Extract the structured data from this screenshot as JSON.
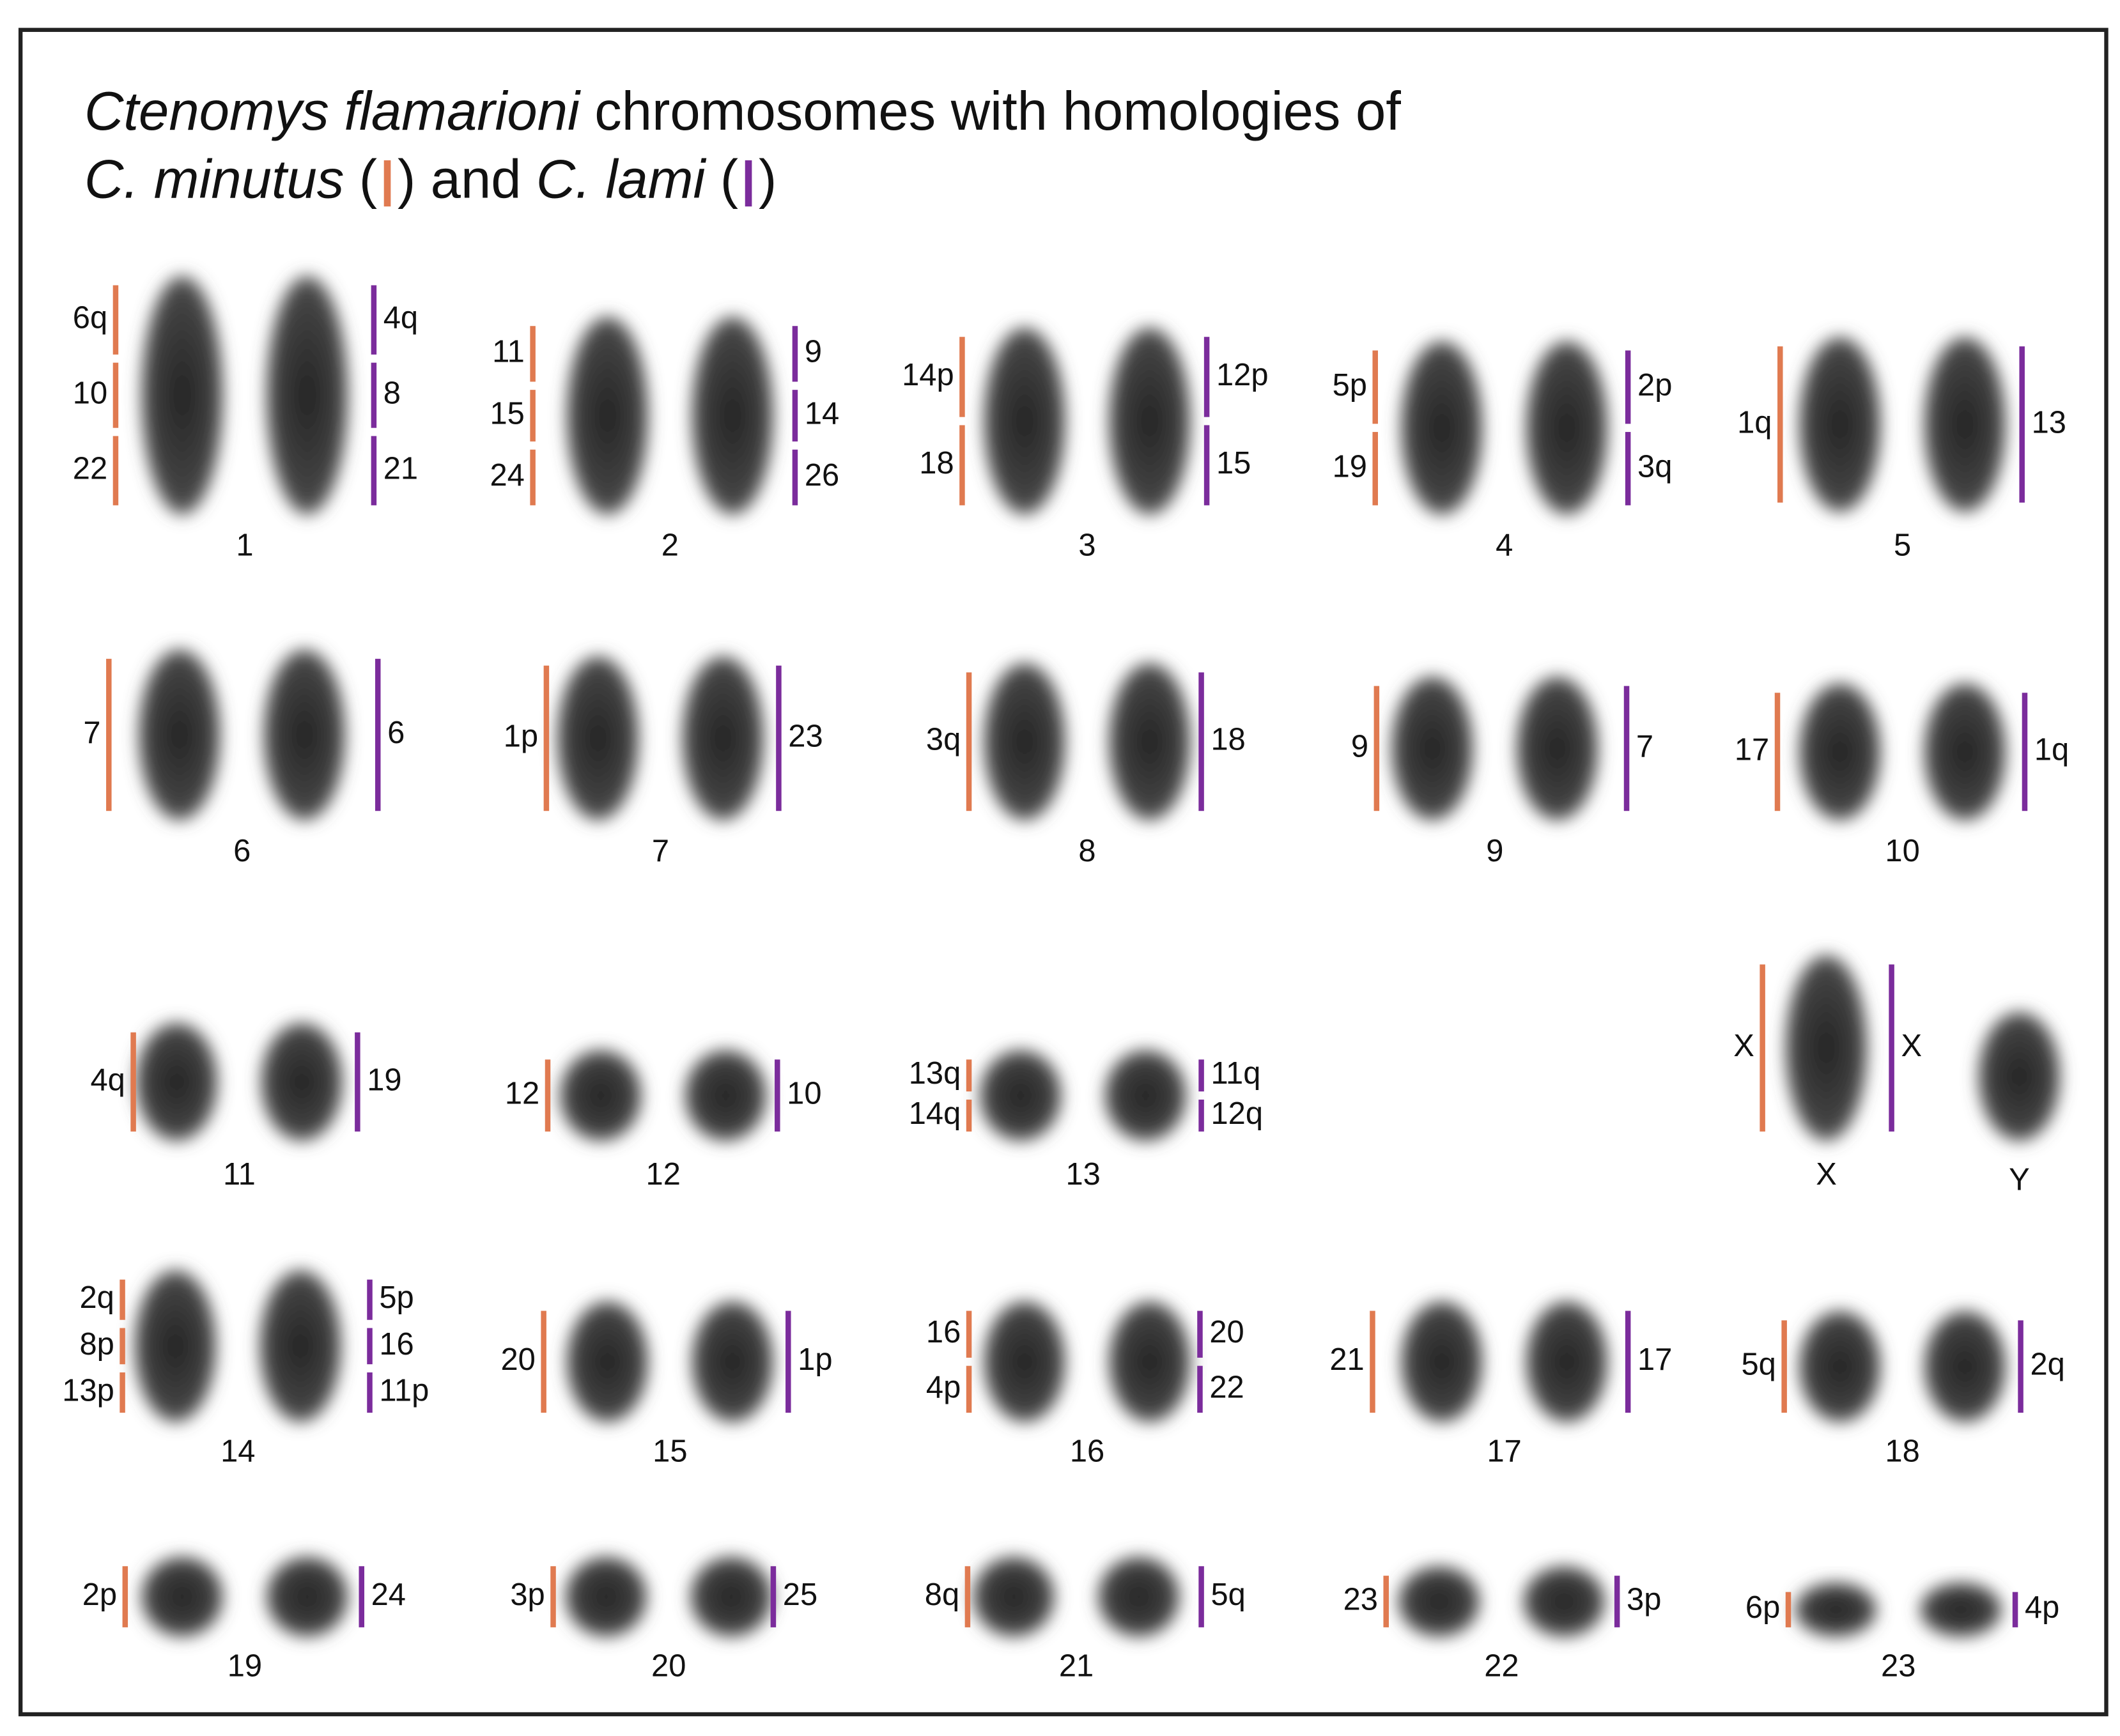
{
  "title": {
    "species": "Ctenomys flamarioni",
    "rest": "chromosomes with homologies of",
    "minutus": "C. minutus",
    "open": "(",
    "close": ")",
    "and": "and",
    "lami": "C. lami"
  },
  "minutus_color": "#e07a50",
  "lami_color": "#7b2c9c",
  "chromosomes": [
    {
      "label": "1",
      "minutus": [
        "6q",
        "10",
        "22"
      ],
      "lami": [
        "4q",
        "8",
        "21"
      ]
    },
    {
      "label": "2",
      "minutus": [
        "11",
        "15",
        "24"
      ],
      "lami": [
        "9",
        "14",
        "26"
      ]
    },
    {
      "label": "3",
      "minutus": [
        "14p",
        "18"
      ],
      "lami": [
        "12p",
        "15"
      ]
    },
    {
      "label": "4",
      "minutus": [
        "5p",
        "19"
      ],
      "lami": [
        "2p",
        "3q"
      ]
    },
    {
      "label": "5",
      "minutus": [
        "1q"
      ],
      "lami": [
        "13"
      ]
    },
    {
      "label": "6",
      "minutus": [
        "7"
      ],
      "lami": [
        "6"
      ]
    },
    {
      "label": "7",
      "minutus": [
        "1p"
      ],
      "lami": [
        "23"
      ]
    },
    {
      "label": "8",
      "minutus": [
        "3q"
      ],
      "lami": [
        "18"
      ]
    },
    {
      "label": "9",
      "minutus": [
        "9"
      ],
      "lami": [
        "7"
      ]
    },
    {
      "label": "10",
      "minutus": [
        "17"
      ],
      "lami": [
        "1q"
      ]
    },
    {
      "label": "11",
      "minutus": [
        "4q"
      ],
      "lami": [
        "19"
      ]
    },
    {
      "label": "12",
      "minutus": [
        "12"
      ],
      "lami": [
        "10"
      ]
    },
    {
      "label": "13",
      "minutus": [
        "13q",
        "14q"
      ],
      "lami": [
        "11q",
        "12q"
      ]
    },
    {
      "label": "X",
      "minutus": [
        "X"
      ],
      "lami": [
        "X"
      ]
    },
    {
      "label": "Y",
      "minutus": [],
      "lami": []
    },
    {
      "label": "14",
      "minutus": [
        "2q",
        "8p",
        "13p"
      ],
      "lami": [
        "5p",
        "16",
        "11p"
      ]
    },
    {
      "label": "15",
      "minutus": [
        "20"
      ],
      "lami": [
        "1p"
      ]
    },
    {
      "label": "16",
      "minutus": [
        "16",
        "4p"
      ],
      "lami": [
        "20",
        "22"
      ]
    },
    {
      "label": "17",
      "minutus": [
        "21"
      ],
      "lami": [
        "17"
      ]
    },
    {
      "label": "18",
      "minutus": [
        "5q"
      ],
      "lami": [
        "2q"
      ]
    },
    {
      "label": "19",
      "minutus": [
        "2p"
      ],
      "lami": [
        "24"
      ]
    },
    {
      "label": "20",
      "minutus": [
        "3p"
      ],
      "lami": [
        "25"
      ]
    },
    {
      "label": "21",
      "minutus": [
        "8q"
      ],
      "lami": [
        "5q"
      ]
    },
    {
      "label": "22",
      "minutus": [
        "23"
      ],
      "lami": [
        "3p"
      ]
    },
    {
      "label": "23",
      "minutus": [
        "6p"
      ],
      "lami": [
        "4p"
      ]
    }
  ]
}
